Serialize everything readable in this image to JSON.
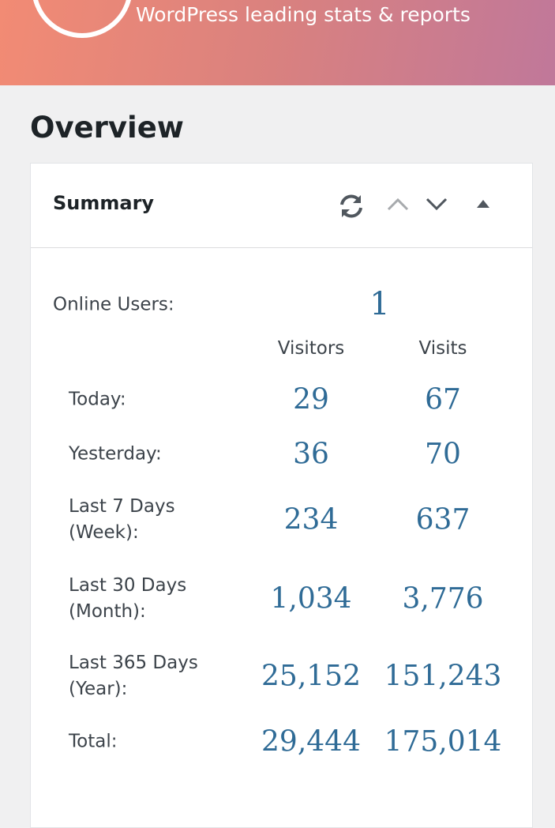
{
  "header": {
    "tagline": "WordPress leading stats & reports"
  },
  "page": {
    "title": "Overview"
  },
  "panel": {
    "title": "Summary",
    "online": {
      "label": "Online Users:",
      "value": "1"
    },
    "table": {
      "columns": [
        "Visitors",
        "Visits"
      ],
      "rows": [
        [
          "Today:",
          "29",
          "67"
        ],
        [
          "Yesterday:",
          "36",
          "70"
        ],
        [
          "Last 7 Days\n(Week):",
          "234",
          "637"
        ],
        [
          "Last 30 Days\n(Month):",
          "1,034",
          "3,776"
        ],
        [
          "Last 365 Days\n(Year):",
          "25,152",
          "151,243"
        ],
        [
          "Total:",
          "29,444",
          "175,014"
        ]
      ]
    }
  }
}
